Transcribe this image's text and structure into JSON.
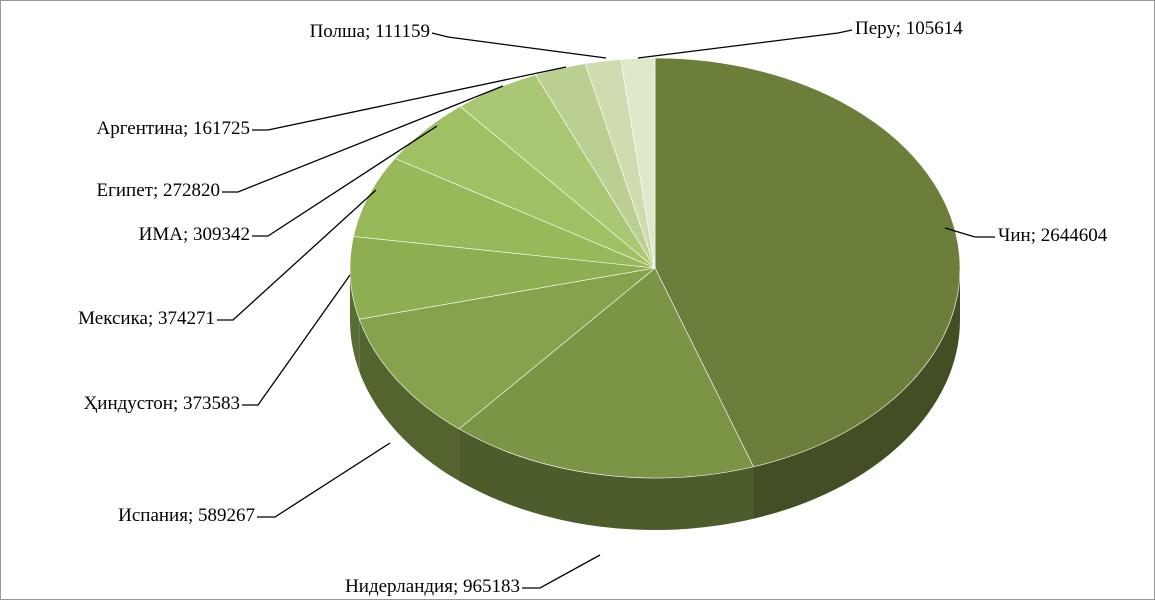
{
  "chart_data": {
    "type": "pie3d",
    "categories": [
      "Чин",
      "Нидерландия",
      "Испания",
      "Ҳиндустон",
      "Мексика",
      "ИМА",
      "Египет",
      "Аргентина",
      "Полша",
      "Перу"
    ],
    "values": [
      2644604,
      965183,
      589267,
      373583,
      374271,
      309342,
      272820,
      161725,
      111159,
      105614
    ],
    "colors": [
      "#6b7f3a",
      "#7b9446",
      "#86a24c",
      "#8fae52",
      "#98b85a",
      "#a1c064",
      "#aac874",
      "#bccf92",
      "#cfdcb0",
      "#e0e8cc"
    ],
    "label_separator": "; "
  }
}
